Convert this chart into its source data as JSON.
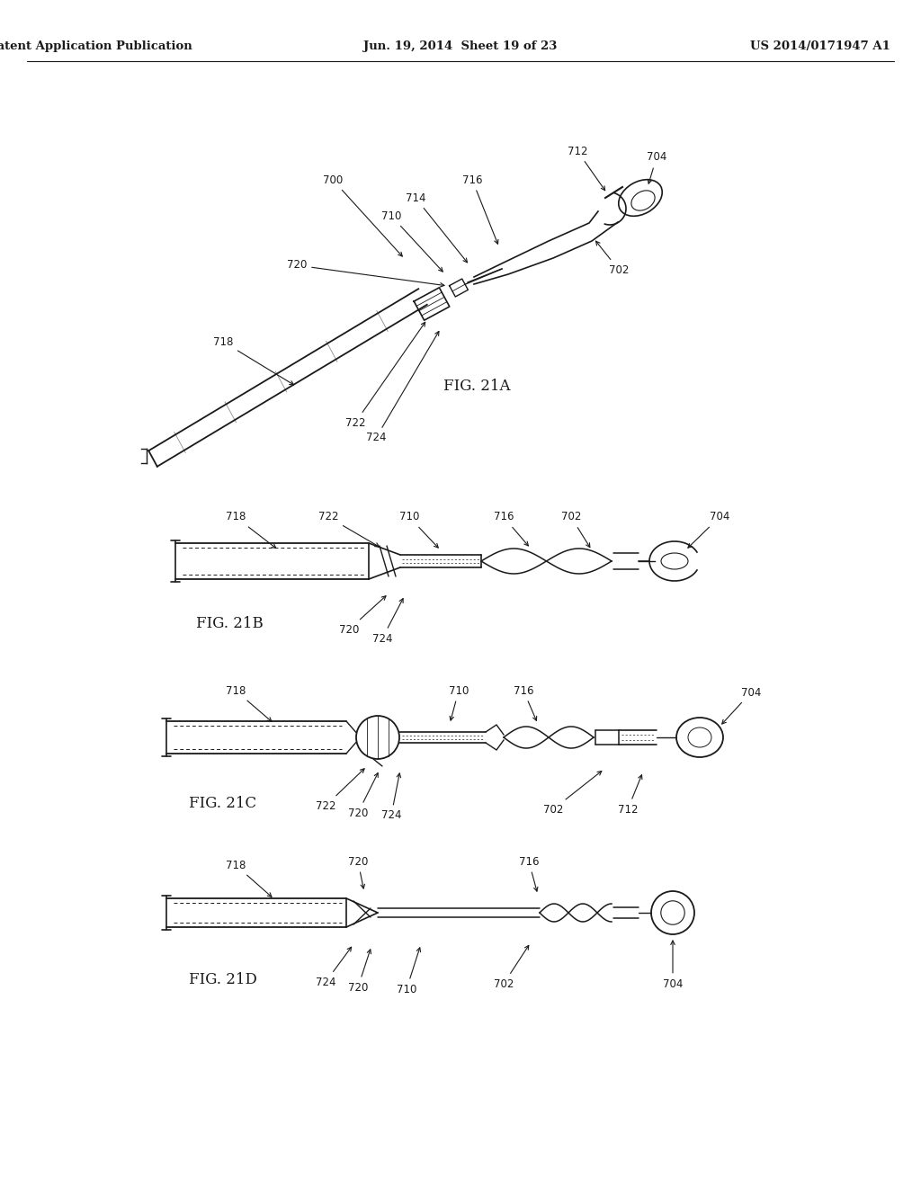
{
  "title_left": "Patent Application Publication",
  "title_center": "Jun. 19, 2014  Sheet 19 of 23",
  "title_right": "US 2014/0171947 A1",
  "fig21a_label": "FIG. 21A",
  "fig21b_label": "FIG. 21B",
  "fig21c_label": "FIG. 21C",
  "fig21d_label": "FIG. 21D",
  "bg_color": "#ffffff",
  "line_color": "#1a1a1a",
  "text_color": "#1a1a1a",
  "header_fontsize": 9.5,
  "label_fontsize": 8.5,
  "fig_label_fontsize": 12
}
